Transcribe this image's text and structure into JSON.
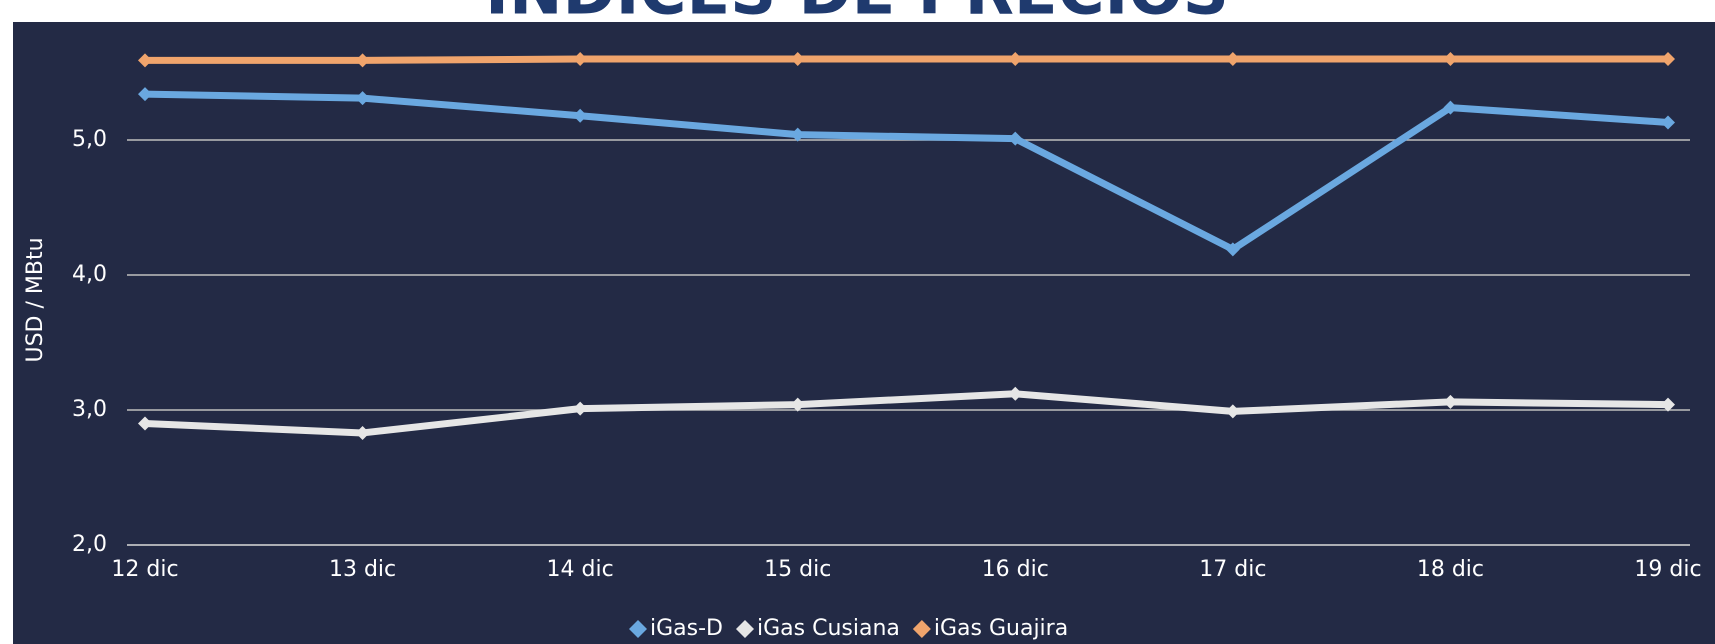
{
  "chart_data": {
    "type": "line",
    "title": "ÍNDICES DE PRECIOS",
    "ylabel": "USD / MBtu",
    "categories": [
      "12 dic",
      "13 dic",
      "14 dic",
      "15 dic",
      "16 dic",
      "17 dic",
      "18 dic",
      "19 dic"
    ],
    "series": [
      {
        "name": "iGas-D",
        "color": "#6aa8e0",
        "values": [
          5.34,
          5.31,
          5.18,
          5.04,
          5.01,
          4.19,
          5.24,
          5.13
        ]
      },
      {
        "name": "iGas Cusiana",
        "color": "#e6e6e6",
        "values": [
          2.9,
          2.83,
          3.01,
          3.04,
          3.12,
          2.99,
          3.06,
          3.04
        ]
      },
      {
        "name": "iGas Guajira",
        "color": "#f0a46c",
        "values": [
          5.59,
          5.59,
          5.6,
          5.6,
          5.6,
          5.6,
          5.6,
          5.6
        ]
      }
    ],
    "ylim": [
      2,
      6
    ],
    "yticks": [
      {
        "value": 2,
        "label": "2,0"
      },
      {
        "value": 3,
        "label": "3,0"
      },
      {
        "value": 4,
        "label": "4,0"
      },
      {
        "value": 5,
        "label": "5,0"
      }
    ],
    "grid": true,
    "legend": "bottom"
  }
}
